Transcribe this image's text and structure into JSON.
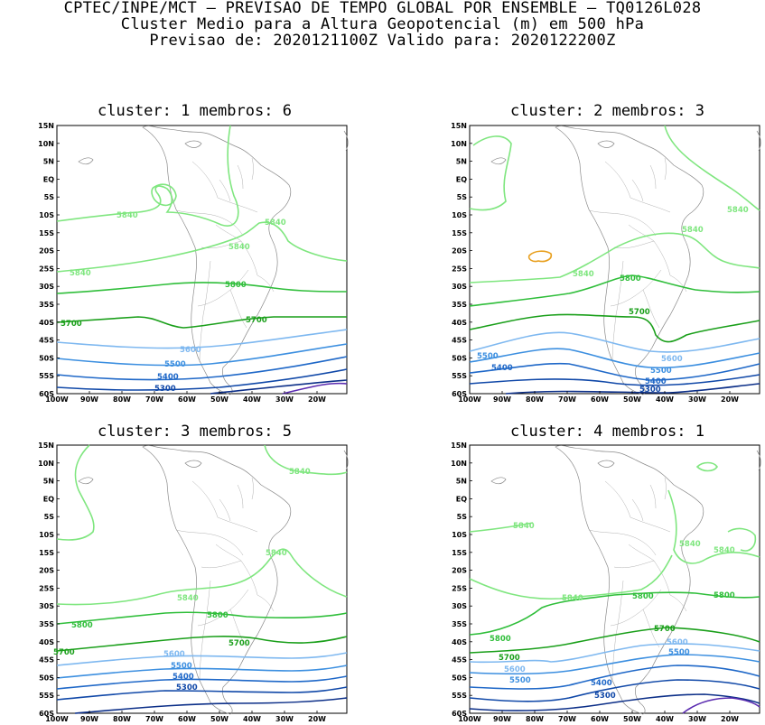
{
  "header": {
    "line1": "CPTEC/INPE/MCT — PREVISAO DE TEMPO GLOBAL POR ENSEMBLE — TQ0126L028",
    "line2": "Cluster Medio para a Altura Geopotencial (m) em 500 hPa",
    "line3": "Previsao de: 2020121100Z    Valido para: 2020122200Z"
  },
  "axes": {
    "lat_labels": [
      "15N",
      "10N",
      "5N",
      "EQ",
      "5S",
      "10S",
      "15S",
      "20S",
      "25S",
      "30S",
      "35S",
      "40S",
      "45S",
      "50S",
      "55S",
      "60S"
    ],
    "lon_labels": [
      "100W",
      "90W",
      "80W",
      "70W",
      "60W",
      "50W",
      "40W",
      "30W",
      "20W"
    ]
  },
  "colors": {
    "c5840": "#7fe67f",
    "c5800": "#2fbe3a",
    "c5700": "#1a9f1a",
    "c5600": "#7eb8f0",
    "c5500": "#3c8fe0",
    "c5400": "#1f68c8",
    "c5300": "#1048a8",
    "c5200": "#0c2f88",
    "c5100": "#5a2bb0",
    "c5880": "#e8a020"
  },
  "panels": [
    {
      "title": "cluster: 1   membros: 6",
      "labels": [
        "5840",
        "5840",
        "5840",
        "5840",
        "5800",
        "5700",
        "5700",
        "5600",
        "5500",
        "5400",
        "5300"
      ]
    },
    {
      "title": "cluster: 2   membros: 3",
      "labels": [
        "5840",
        "5840",
        "5840",
        "5800",
        "5700",
        "5600",
        "5500",
        "5500",
        "5400",
        "5400",
        "5300"
      ]
    },
    {
      "title": "cluster: 3   membros: 5",
      "labels": [
        "5840",
        "5840",
        "5840",
        "5800",
        "5800",
        "5700",
        "5700",
        "5600",
        "5500",
        "5400",
        "5300"
      ]
    },
    {
      "title": "cluster: 4   membros: 1",
      "labels": [
        "5840",
        "5840",
        "5840",
        "5840",
        "5800",
        "5800",
        "5800",
        "5700",
        "5700",
        "5600",
        "5600",
        "5500",
        "5500",
        "5400",
        "5300"
      ]
    }
  ]
}
